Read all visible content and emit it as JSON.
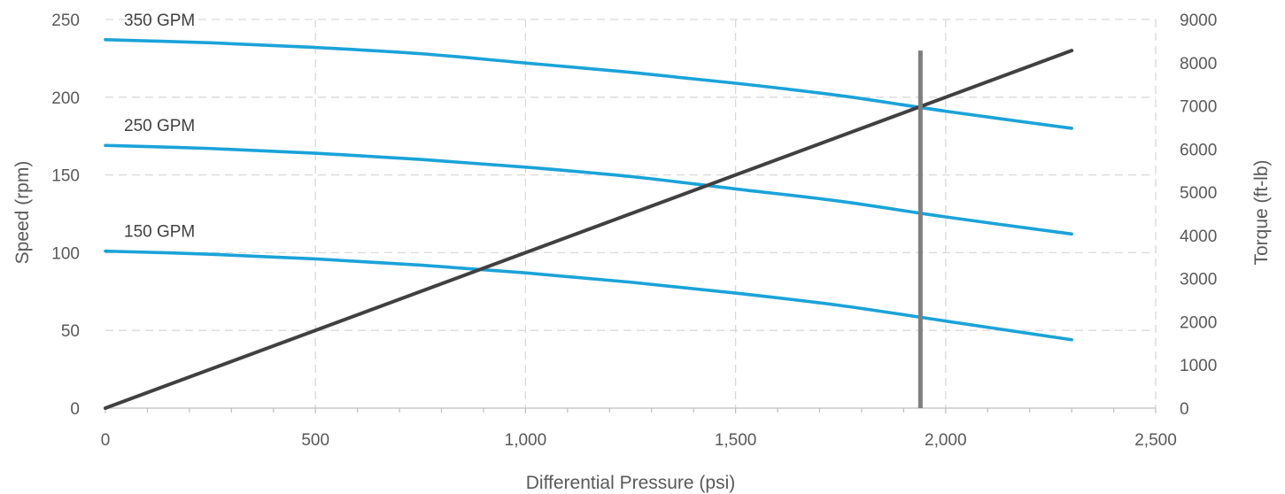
{
  "chart_data": {
    "type": "line",
    "title": "",
    "xlabel": "Differential Pressure (psi)",
    "ylabel": "Speed (rpm)",
    "y2label": "Torque (ft-lb)",
    "xlim": [
      0,
      2500
    ],
    "ylim": [
      0,
      250
    ],
    "y2lim": [
      0,
      9000
    ],
    "x_ticks": [
      {
        "value": 0,
        "label": "0"
      },
      {
        "value": 500,
        "label": "500"
      },
      {
        "value": 1000,
        "label": "1,000"
      },
      {
        "value": 1500,
        "label": "1,500"
      },
      {
        "value": 2000,
        "label": "2,000"
      },
      {
        "value": 2500,
        "label": "2,500"
      }
    ],
    "y_ticks": [
      {
        "value": 0,
        "label": "0"
      },
      {
        "value": 50,
        "label": "50"
      },
      {
        "value": 100,
        "label": "100"
      },
      {
        "value": 150,
        "label": "150"
      },
      {
        "value": 200,
        "label": "200"
      },
      {
        "value": 250,
        "label": "250"
      }
    ],
    "y2_ticks": [
      {
        "value": 0,
        "label": "0"
      },
      {
        "value": 1000,
        "label": "1000"
      },
      {
        "value": 2000,
        "label": "2000"
      },
      {
        "value": 3000,
        "label": "3000"
      },
      {
        "value": 4000,
        "label": "4000"
      },
      {
        "value": 5000,
        "label": "5000"
      },
      {
        "value": 6000,
        "label": "6000"
      },
      {
        "value": 7000,
        "label": "7000"
      },
      {
        "value": 8000,
        "label": "8000"
      },
      {
        "value": 9000,
        "label": "9000"
      }
    ],
    "grid": true,
    "series": [
      {
        "name": "350 GPM",
        "axis": "left",
        "color": "#1AA3D9",
        "x": [
          0,
          250,
          500,
          750,
          1000,
          1250,
          1500,
          1750,
          2000,
          2300
        ],
        "y": [
          237,
          235,
          232,
          228,
          222,
          216,
          209,
          201,
          191,
          180
        ]
      },
      {
        "name": "250 GPM",
        "axis": "left",
        "color": "#1AA3D9",
        "x": [
          0,
          250,
          500,
          750,
          1000,
          1250,
          1500,
          1750,
          2000,
          2300
        ],
        "y": [
          169,
          167,
          164,
          160,
          155,
          149,
          141,
          133,
          123,
          112
        ]
      },
      {
        "name": "150 GPM",
        "axis": "left",
        "color": "#1AA3D9",
        "x": [
          0,
          250,
          500,
          750,
          1000,
          1250,
          1500,
          1750,
          2000,
          2300
        ],
        "y": [
          101,
          99,
          96,
          92,
          87,
          81,
          74,
          66,
          56,
          44
        ]
      },
      {
        "name": "",
        "axis": "right",
        "color": "#404040",
        "x": [
          0,
          2300
        ],
        "y": [
          0,
          8280
        ]
      }
    ],
    "vertical_marker": {
      "x": 1940,
      "y_top": 230,
      "color": "#7F7F7F"
    }
  }
}
